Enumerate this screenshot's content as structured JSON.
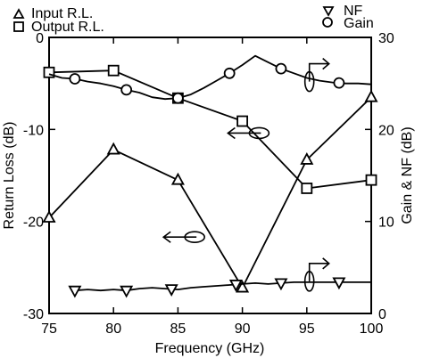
{
  "chart_data": {
    "type": "line",
    "xlabel": "Frequency (GHz)",
    "ylabel_left": "Return Loss (dB)",
    "ylabel_right": "Gain & NF (dB)",
    "xlim": [
      75,
      100
    ],
    "ylim_left": [
      -30,
      0
    ],
    "ylim_right": [
      0,
      30
    ],
    "xticks": [
      75,
      80,
      85,
      90,
      95,
      100
    ],
    "yticks_left": [
      0,
      -10,
      -20,
      -30
    ],
    "yticks_right": [
      0,
      10,
      20,
      30
    ],
    "grid": false,
    "legend": [
      {
        "name": "Input R.L.",
        "marker": "triangle-up"
      },
      {
        "name": "Output R.L.",
        "marker": "square"
      },
      {
        "name": "NF",
        "marker": "triangle-down"
      },
      {
        "name": "Gain",
        "marker": "circle"
      }
    ],
    "series": [
      {
        "name": "Input R.L.",
        "axis": "left",
        "marker": "triangle-up",
        "x": [
          75,
          80,
          85,
          90,
          95,
          100
        ],
        "y": [
          -19.6,
          -12.2,
          -15.5,
          -27.2,
          -13.3,
          -6.5
        ]
      },
      {
        "name": "Output R.L.",
        "axis": "left",
        "marker": "square",
        "x": [
          75,
          80,
          85,
          90,
          95,
          100
        ],
        "y": [
          -3.8,
          -3.6,
          -6.6,
          -9.1,
          -16.4,
          -15.5
        ]
      },
      {
        "name": "Gain",
        "axis": "right",
        "marker": "circle",
        "x": [
          75,
          76,
          77,
          78,
          79,
          80,
          81,
          82,
          83,
          84,
          85,
          86,
          87,
          88,
          89,
          90,
          91,
          92,
          93,
          94,
          95,
          96,
          97,
          98,
          99,
          100
        ],
        "y": [
          26.0,
          25.6,
          25.5,
          25.2,
          25.0,
          24.7,
          24.3,
          24.0,
          23.5,
          23.3,
          23.4,
          23.8,
          24.5,
          25.3,
          26.1,
          27.0,
          28.0,
          27.3,
          26.6,
          26.1,
          25.6,
          25.3,
          25.1,
          25.0,
          25.0,
          24.9
        ],
        "markers_at_x": [
          77,
          81,
          85,
          89,
          93,
          97.5
        ]
      },
      {
        "name": "NF",
        "axis": "right",
        "marker": "triangle-down",
        "x": [
          77,
          78,
          79,
          80,
          81,
          82,
          83,
          84,
          85,
          86,
          87,
          88,
          89,
          90,
          91,
          92,
          93,
          94,
          95,
          96,
          97,
          98,
          99,
          100
        ],
        "y": [
          2.5,
          2.6,
          2.5,
          2.6,
          2.5,
          2.7,
          2.8,
          2.7,
          2.6,
          2.8,
          2.9,
          3.0,
          3.1,
          3.2,
          3.3,
          3.2,
          3.3,
          3.4,
          3.4,
          3.4,
          3.4,
          3.4,
          3.4,
          3.4
        ],
        "markers_at_x": [
          77,
          81,
          84.5,
          89.5,
          93,
          97.5
        ]
      }
    ],
    "annotations": [
      {
        "type": "ellipse-arrow",
        "points_to": "left",
        "x": 86.3,
        "y_left": -21.7,
        "y_right": 8.3
      },
      {
        "type": "ellipse-arrow",
        "points_to": "left",
        "x": 91.3,
        "y_left": -10.4,
        "y_right": 19.6
      },
      {
        "type": "ellipse-arrow",
        "points_to": "right",
        "x": 95.2,
        "y_left": -4.8,
        "y_right": 25.2
      },
      {
        "type": "ellipse-arrow",
        "points_to": "right",
        "x": 95.2,
        "y_left": -26.5,
        "y_right": 3.5
      }
    ]
  }
}
